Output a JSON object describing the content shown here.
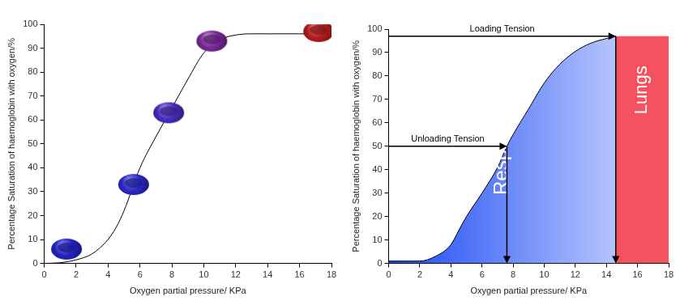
{
  "chart_data": [
    {
      "type": "line",
      "xlabel": "Oxygen partial pressure/ KPa",
      "ylabel": "Percentage Saturation of haemoglobin with oxygen/%",
      "xlim": [
        0,
        18
      ],
      "xticks": [
        0,
        2,
        4,
        6,
        8,
        10,
        12,
        14,
        16,
        18
      ],
      "ylim": [
        0,
        100
      ],
      "yticks": [
        0,
        10,
        20,
        30,
        40,
        50,
        60,
        70,
        80,
        90,
        100
      ],
      "grid": false,
      "series": [
        {
          "type": "line",
          "color": "#000000",
          "marker": "none",
          "line_style": "solid",
          "x": [
            0,
            1,
            2,
            3,
            4,
            4.5,
            5,
            6,
            7,
            8,
            9,
            10,
            11,
            12,
            13,
            14,
            16,
            18
          ],
          "values": [
            0,
            0.3,
            1.5,
            4,
            10,
            15,
            22,
            40,
            53,
            65,
            77,
            88,
            93.5,
            95.5,
            96,
            96,
            96,
            96
          ]
        },
        {
          "type": "scatter",
          "marker": "ellipse",
          "x": [
            1.4,
            5.6,
            7.8,
            10.5,
            17.2
          ],
          "values": [
            6,
            33,
            63,
            93,
            97
          ],
          "colors": [
            "#2424c8",
            "#2a2ac8",
            "#4a2cc0",
            "#7a2a9a",
            "#b81c1c"
          ]
        }
      ]
    },
    {
      "type": "line",
      "xlabel": "Oxygen partial pressure/ KPa",
      "ylabel": "Percentage Saturation of haemoglobin with oxygen/%",
      "xlim": [
        0,
        18
      ],
      "xticks": [
        0,
        2,
        4,
        6,
        8,
        10,
        12,
        14,
        16,
        18
      ],
      "ylim": [
        0,
        100
      ],
      "yticks": [
        0,
        10,
        20,
        30,
        40,
        50,
        60,
        70,
        80,
        90,
        100
      ],
      "grid": false,
      "series": [
        {
          "type": "area",
          "color": "#1848f5",
          "line_style": "solid",
          "marker": "none",
          "x": [
            0,
            2,
            3,
            4,
            4.5,
            5,
            6,
            7,
            7.6,
            8,
            9,
            10,
            11,
            12,
            13,
            14,
            14.6
          ],
          "values": [
            1,
            1,
            3,
            8,
            14,
            20,
            30,
            41,
            50,
            55,
            66,
            77,
            85,
            90.5,
            94,
            96,
            97
          ]
        },
        {
          "type": "area",
          "color": "#f4525f",
          "line_style": "none",
          "marker": "none",
          "x": [
            14.6,
            18
          ],
          "values": [
            97,
            97
          ]
        }
      ],
      "annotations": [
        {
          "text": "Loading Tension",
          "x": 14.6,
          "y": 97
        },
        {
          "text": "Unloading Tension",
          "x": 7.6,
          "y": 50
        }
      ],
      "regions": [
        {
          "label": "Respiring Tissues",
          "xlim": [
            0,
            14.6
          ]
        },
        {
          "label": "Lungs",
          "xlim": [
            14.6,
            18
          ]
        }
      ]
    }
  ]
}
